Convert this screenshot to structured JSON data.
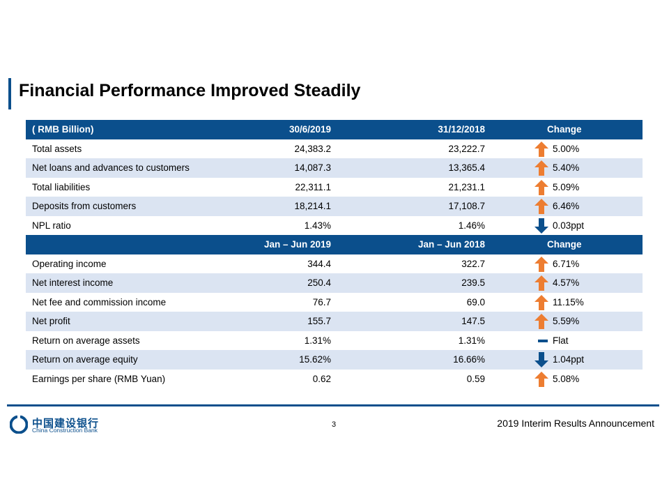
{
  "title": "Financial Performance Improved Steadily",
  "colors": {
    "brand": "#0b4f8c",
    "row_alt": "#dbe4f2",
    "up_arrow": "#ed7d31",
    "down_arrow": "#0b4f8c"
  },
  "balance": {
    "header": {
      "label": "( RMB Billion)",
      "col1": "30/6/2019",
      "col2": "31/12/2018",
      "change": "Change"
    },
    "rows": [
      {
        "label": "Total assets",
        "v1": "24,383.2",
        "v2": "23,222.7",
        "change": "5.00%",
        "trend": "up-arrow-icon"
      },
      {
        "label": "Net loans and advances to customers",
        "v1": "14,087.3",
        "v2": "13,365.4",
        "change": "5.40%",
        "trend": "up-arrow-icon"
      },
      {
        "label": "Total liabilities",
        "v1": "22,311.1",
        "v2": "21,231.1",
        "change": "5.09%",
        "trend": "up-arrow-icon"
      },
      {
        "label": "Deposits from customers",
        "v1": "18,214.1",
        "v2": "17,108.7",
        "change": "6.46%",
        "trend": "up-arrow-icon"
      },
      {
        "label": "NPL ratio",
        "v1": "1.43%",
        "v2": "1.46%",
        "change": "0.03ppt",
        "trend": "down-arrow-icon"
      }
    ]
  },
  "income": {
    "header": {
      "label": "",
      "col1": "Jan – Jun 2019",
      "col2": "Jan – Jun 2018",
      "change": "Change"
    },
    "rows": [
      {
        "label": "Operating income",
        "v1": "344.4",
        "v2": "322.7",
        "change": "6.71%",
        "trend": "up-arrow-icon"
      },
      {
        "label": "Net interest income",
        "v1": "250.4",
        "v2": "239.5",
        "change": "4.57%",
        "trend": "up-arrow-icon"
      },
      {
        "label": "Net fee and commission income",
        "v1": "76.7",
        "v2": "69.0",
        "change": "11.15%",
        "trend": "up-arrow-icon"
      },
      {
        "label": "Net profit",
        "v1": "155.7",
        "v2": "147.5",
        "change": "5.59%",
        "trend": "up-arrow-icon"
      },
      {
        "label": "Return on average assets",
        "v1": "1.31%",
        "v2": "1.31%",
        "change": "Flat",
        "trend": "flat-dash-icon"
      },
      {
        "label": "Return on average equity",
        "v1": "15.62%",
        "v2": "16.66%",
        "change": "1.04ppt",
        "trend": "down-arrow-icon"
      },
      {
        "label": "Earnings per share (RMB Yuan)",
        "v1": "0.62",
        "v2": "0.59",
        "change": "5.08%",
        "trend": "up-arrow-icon"
      }
    ]
  },
  "footer": {
    "logo_cn": "中国建设银行",
    "logo_en": "China Construction Bank",
    "page_number": "3",
    "announcement": "2019 Interim Results Announcement"
  }
}
